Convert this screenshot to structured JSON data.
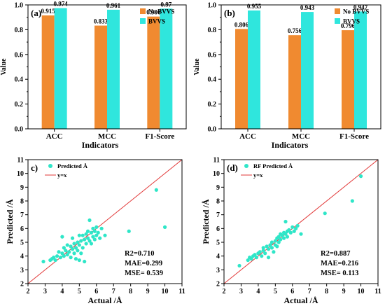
{
  "colors": {
    "no_bvvs": "#F08A30",
    "bvvs": "#2FE6DD",
    "scatter": "#2FE6C8",
    "line": "#E23A3A"
  },
  "chart_data": [
    {
      "type": "bar",
      "panel_label": "(a)",
      "categories": [
        "ACC",
        "MCC",
        "F1-Score"
      ],
      "series": [
        {
          "name": "No BVVS",
          "values": [
            0.915,
            0.833,
            0.906
          ]
        },
        {
          "name": "BVVS",
          "values": [
            0.974,
            0.961,
            0.97
          ]
        }
      ],
      "value_labels": [
        [
          "0.915",
          "0.833",
          "0.906"
        ],
        [
          "0.974",
          "0.961",
          "0.97"
        ]
      ],
      "xlabel": "Indicators",
      "ylabel": "Value",
      "ylim": [
        0,
        1.0
      ],
      "yticks": [
        "0.0",
        "0.2",
        "0.4",
        "0.6",
        "0.8",
        "1.0"
      ],
      "legend_position": "top-right"
    },
    {
      "type": "bar",
      "panel_label": "(b)",
      "categories": [
        "ACC",
        "MCC",
        "F1-Score"
      ],
      "series": [
        {
          "name": "No BVVS",
          "values": [
            0.806,
            0.756,
            0.796
          ]
        },
        {
          "name": "BVVS",
          "values": [
            0.955,
            0.943,
            0.947
          ]
        }
      ],
      "value_labels": [
        [
          "0.806",
          "0.756",
          "0.796"
        ],
        [
          "0.955",
          "0.943",
          "0.947"
        ]
      ],
      "xlabel": "Indicators",
      "ylabel": "Value",
      "ylim": [
        0,
        1.0
      ],
      "yticks": [
        "0.0",
        "0.2",
        "0.4",
        "0.6",
        "0.8",
        "1.0"
      ],
      "legend_position": "top-right"
    },
    {
      "type": "scatter",
      "panel_label": "c)",
      "series": [
        {
          "name": "Predicted Å",
          "points": [
            [
              2.9,
              3.6
            ],
            [
              3.3,
              3.7
            ],
            [
              3.4,
              3.8
            ],
            [
              3.5,
              3.9
            ],
            [
              3.6,
              3.7
            ],
            [
              3.7,
              4.0
            ],
            [
              3.8,
              4.3
            ],
            [
              3.9,
              3.9
            ],
            [
              4.0,
              4.2
            ],
            [
              4.0,
              5.4
            ],
            [
              4.1,
              4.0
            ],
            [
              4.1,
              4.6
            ],
            [
              4.2,
              4.4
            ],
            [
              4.3,
              4.1
            ],
            [
              4.3,
              4.8
            ],
            [
              4.4,
              4.3
            ],
            [
              4.5,
              3.9
            ],
            [
              4.5,
              4.7
            ],
            [
              4.6,
              4.5
            ],
            [
              4.6,
              5.3
            ],
            [
              4.7,
              4.2
            ],
            [
              4.7,
              4.9
            ],
            [
              4.8,
              3.8
            ],
            [
              4.8,
              4.6
            ],
            [
              4.9,
              5.0
            ],
            [
              4.9,
              4.4
            ],
            [
              5.0,
              3.7
            ],
            [
              5.0,
              4.8
            ],
            [
              5.0,
              5.5
            ],
            [
              5.1,
              5.1
            ],
            [
              5.1,
              4.2
            ],
            [
              5.2,
              5.5
            ],
            [
              5.2,
              4.6
            ],
            [
              5.3,
              3.6
            ],
            [
              5.3,
              5.2
            ],
            [
              5.4,
              5.6
            ],
            [
              5.4,
              4.9
            ],
            [
              5.5,
              5.8
            ],
            [
              5.5,
              5.3
            ],
            [
              5.6,
              6.6
            ],
            [
              5.6,
              5.1
            ],
            [
              5.7,
              5.7
            ],
            [
              5.7,
              4.9
            ],
            [
              5.8,
              5.4
            ],
            [
              5.8,
              6.0
            ],
            [
              5.9,
              5.2
            ],
            [
              5.9,
              5.8
            ],
            [
              6.0,
              5.5
            ],
            [
              6.0,
              6.1
            ],
            [
              6.1,
              5.7
            ],
            [
              6.2,
              5.3
            ],
            [
              6.3,
              6.0
            ],
            [
              6.5,
              5.5
            ],
            [
              7.9,
              5.8
            ],
            [
              9.5,
              8.8
            ],
            [
              10.0,
              6.1
            ]
          ]
        },
        {
          "name": "y=x",
          "line": [
            [
              2,
              2
            ],
            [
              11,
              11
            ]
          ]
        }
      ],
      "xlabel": "Actual /Å",
      "ylabel": "Predicted /Å",
      "xlim": [
        2,
        11
      ],
      "ylim": [
        2,
        11
      ],
      "metrics": [
        "R2=0.710",
        "MAE=0.299",
        "MSE= 0.539"
      ],
      "legend_position": "top-left"
    },
    {
      "type": "scatter",
      "panel_label": "(d)",
      "series": [
        {
          "name": "RF Predicted Å",
          "points": [
            [
              2.9,
              3.3
            ],
            [
              3.4,
              3.7
            ],
            [
              3.5,
              3.9
            ],
            [
              3.6,
              3.8
            ],
            [
              3.7,
              4.0
            ],
            [
              3.8,
              4.1
            ],
            [
              3.9,
              3.9
            ],
            [
              4.0,
              4.2
            ],
            [
              4.1,
              4.3
            ],
            [
              4.2,
              4.0
            ],
            [
              4.3,
              4.4
            ],
            [
              4.3,
              4.6
            ],
            [
              4.4,
              4.2
            ],
            [
              4.5,
              4.7
            ],
            [
              4.6,
              4.5
            ],
            [
              4.6,
              3.9
            ],
            [
              4.7,
              4.8
            ],
            [
              4.8,
              4.6
            ],
            [
              4.8,
              5.0
            ],
            [
              4.9,
              4.3
            ],
            [
              5.0,
              5.1
            ],
            [
              5.0,
              4.8
            ],
            [
              5.1,
              5.3
            ],
            [
              5.1,
              4.7
            ],
            [
              5.2,
              5.4
            ],
            [
              5.2,
              5.0
            ],
            [
              5.3,
              5.6
            ],
            [
              5.3,
              5.2
            ],
            [
              5.4,
              5.5
            ],
            [
              5.5,
              5.7
            ],
            [
              5.5,
              5.3
            ],
            [
              5.6,
              6.5
            ],
            [
              5.6,
              5.6
            ],
            [
              5.7,
              5.8
            ],
            [
              5.7,
              5.4
            ],
            [
              5.8,
              5.9
            ],
            [
              5.9,
              5.7
            ],
            [
              6.0,
              6.1
            ],
            [
              6.1,
              5.8
            ],
            [
              6.2,
              6.0
            ],
            [
              6.3,
              6.2
            ],
            [
              6.5,
              5.6
            ],
            [
              7.9,
              7.1
            ],
            [
              9.5,
              8.0
            ],
            [
              10.0,
              9.8
            ]
          ]
        },
        {
          "name": "y=x",
          "line": [
            [
              2,
              2
            ],
            [
              11,
              11
            ]
          ]
        }
      ],
      "xlabel": "Actual /Å",
      "ylabel": "Predicted /Å",
      "xlim": [
        2,
        11
      ],
      "ylim": [
        2,
        11
      ],
      "metrics": [
        "R2=0.887",
        "MAE=0.216",
        "MSE= 0.113"
      ],
      "legend_position": "top-left"
    }
  ]
}
